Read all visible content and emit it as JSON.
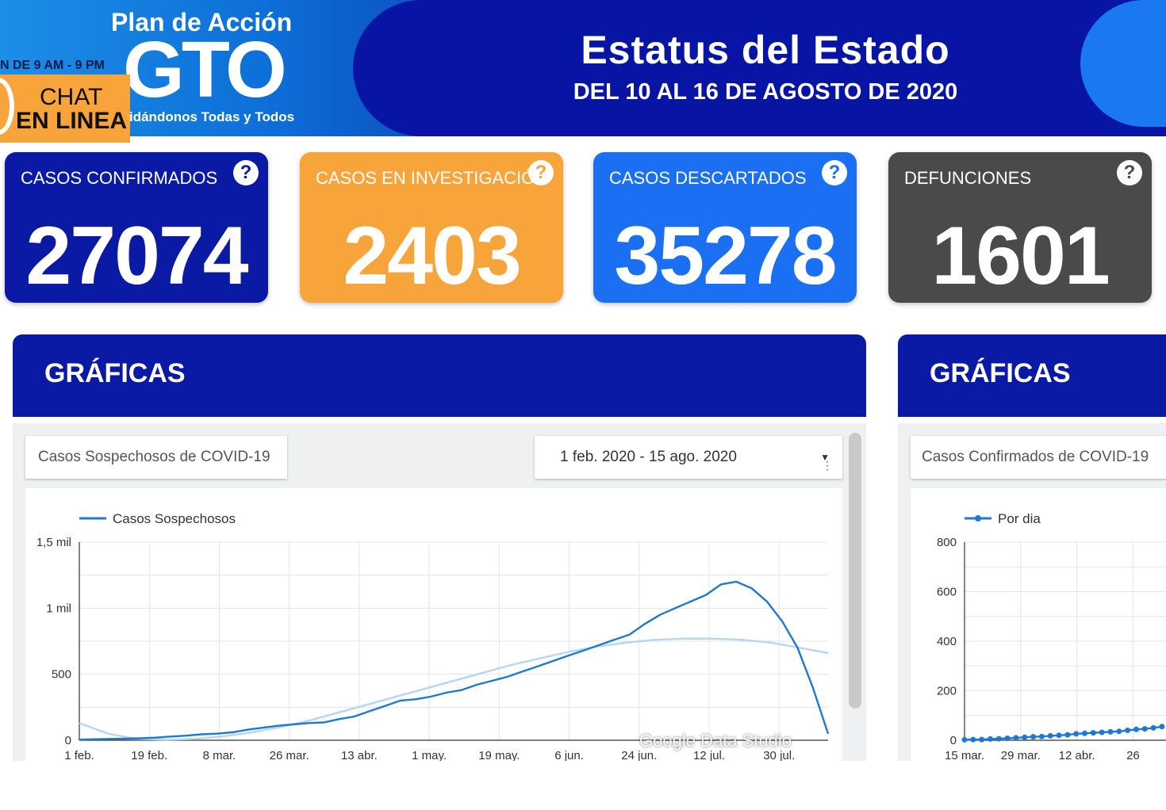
{
  "header": {
    "title": "Estatus del Estado",
    "subtitle": "DEL 10 AL 16 DE AGOSTO DE 2020",
    "logo_top": "Plan de Acción",
    "logo_main": "GTO",
    "logo_tagline": "idándonos Todas y Todos",
    "chat_hours": "N DE 9 AM - 9 PM",
    "chat_line1": "CHAT",
    "chat_line2": "EN LINEA"
  },
  "colors": {
    "navy": "#0714a4",
    "orange": "#f7a43b",
    "blue": "#1a6ff2",
    "gray": "#4a4a4a",
    "line": "#1f78d1"
  },
  "cards": [
    {
      "title": "CASOS CONFIRMADOS",
      "value": "27074",
      "icon": "question-icon"
    },
    {
      "title": "CASOS EN INVESTIGACIÓN",
      "value": "2403",
      "icon": "question-icon"
    },
    {
      "title": "CASOS DESCARTADOS",
      "value": "35278",
      "icon": "question-icon"
    },
    {
      "title": "DEFUNCIONES",
      "value": "1601",
      "icon": "question-icon"
    }
  ],
  "sections": [
    {
      "heading": "GRÁFICAS",
      "chart_title": "Casos Sospechosos de COVID-19",
      "date_range": "1 feb. 2020 - 15 ago. 2020"
    },
    {
      "heading": "GRÁFICAS",
      "chart_title": "Casos Confirmados de COVID-19"
    }
  ],
  "watermark": "Google Data Studio",
  "chart_data": [
    {
      "type": "line",
      "series": [
        {
          "name": "Casos Sospechosos",
          "values": [
            5,
            8,
            10,
            12,
            15,
            20,
            28,
            35,
            45,
            50,
            60,
            80,
            95,
            110,
            120,
            130,
            135,
            160,
            180,
            220,
            260,
            300,
            310,
            330,
            360,
            380,
            420,
            450,
            480,
            520,
            560,
            600,
            640,
            680,
            720,
            760,
            800,
            880,
            950,
            1000,
            1050,
            1100,
            1180,
            1200,
            1150,
            1050,
            900,
            700,
            400,
            50
          ]
        }
      ],
      "trend": [
        130,
        50,
        10,
        5,
        10,
        30,
        60,
        100,
        150,
        210,
        270,
        330,
        390,
        450,
        510,
        570,
        620,
        670,
        710,
        740,
        760,
        770,
        770,
        760,
        740,
        700,
        660
      ],
      "x_ticks": [
        "1 feb.",
        "19 feb.",
        "8 mar.",
        "26 mar.",
        "13 abr.",
        "1 may.",
        "19 may.",
        "6 jun.",
        "24 jun.",
        "12 jul.",
        "30 jul."
      ],
      "y_ticks": [
        "0",
        "500",
        "1 mil",
        "1,5 mil"
      ],
      "ylim": [
        0,
        1500
      ]
    },
    {
      "type": "line",
      "series": [
        {
          "name": "Por dia",
          "values": [
            2,
            3,
            3,
            5,
            6,
            8,
            10,
            12,
            14,
            15,
            18,
            20,
            22,
            26,
            28,
            30,
            32,
            34,
            36,
            40,
            44,
            46,
            50,
            55
          ]
        }
      ],
      "x_ticks": [
        "15 mar.",
        "29 mar.",
        "12 abr.",
        "26"
      ],
      "y_ticks": [
        "0",
        "200",
        "400",
        "600",
        "800"
      ],
      "ylim": [
        0,
        800
      ]
    }
  ]
}
